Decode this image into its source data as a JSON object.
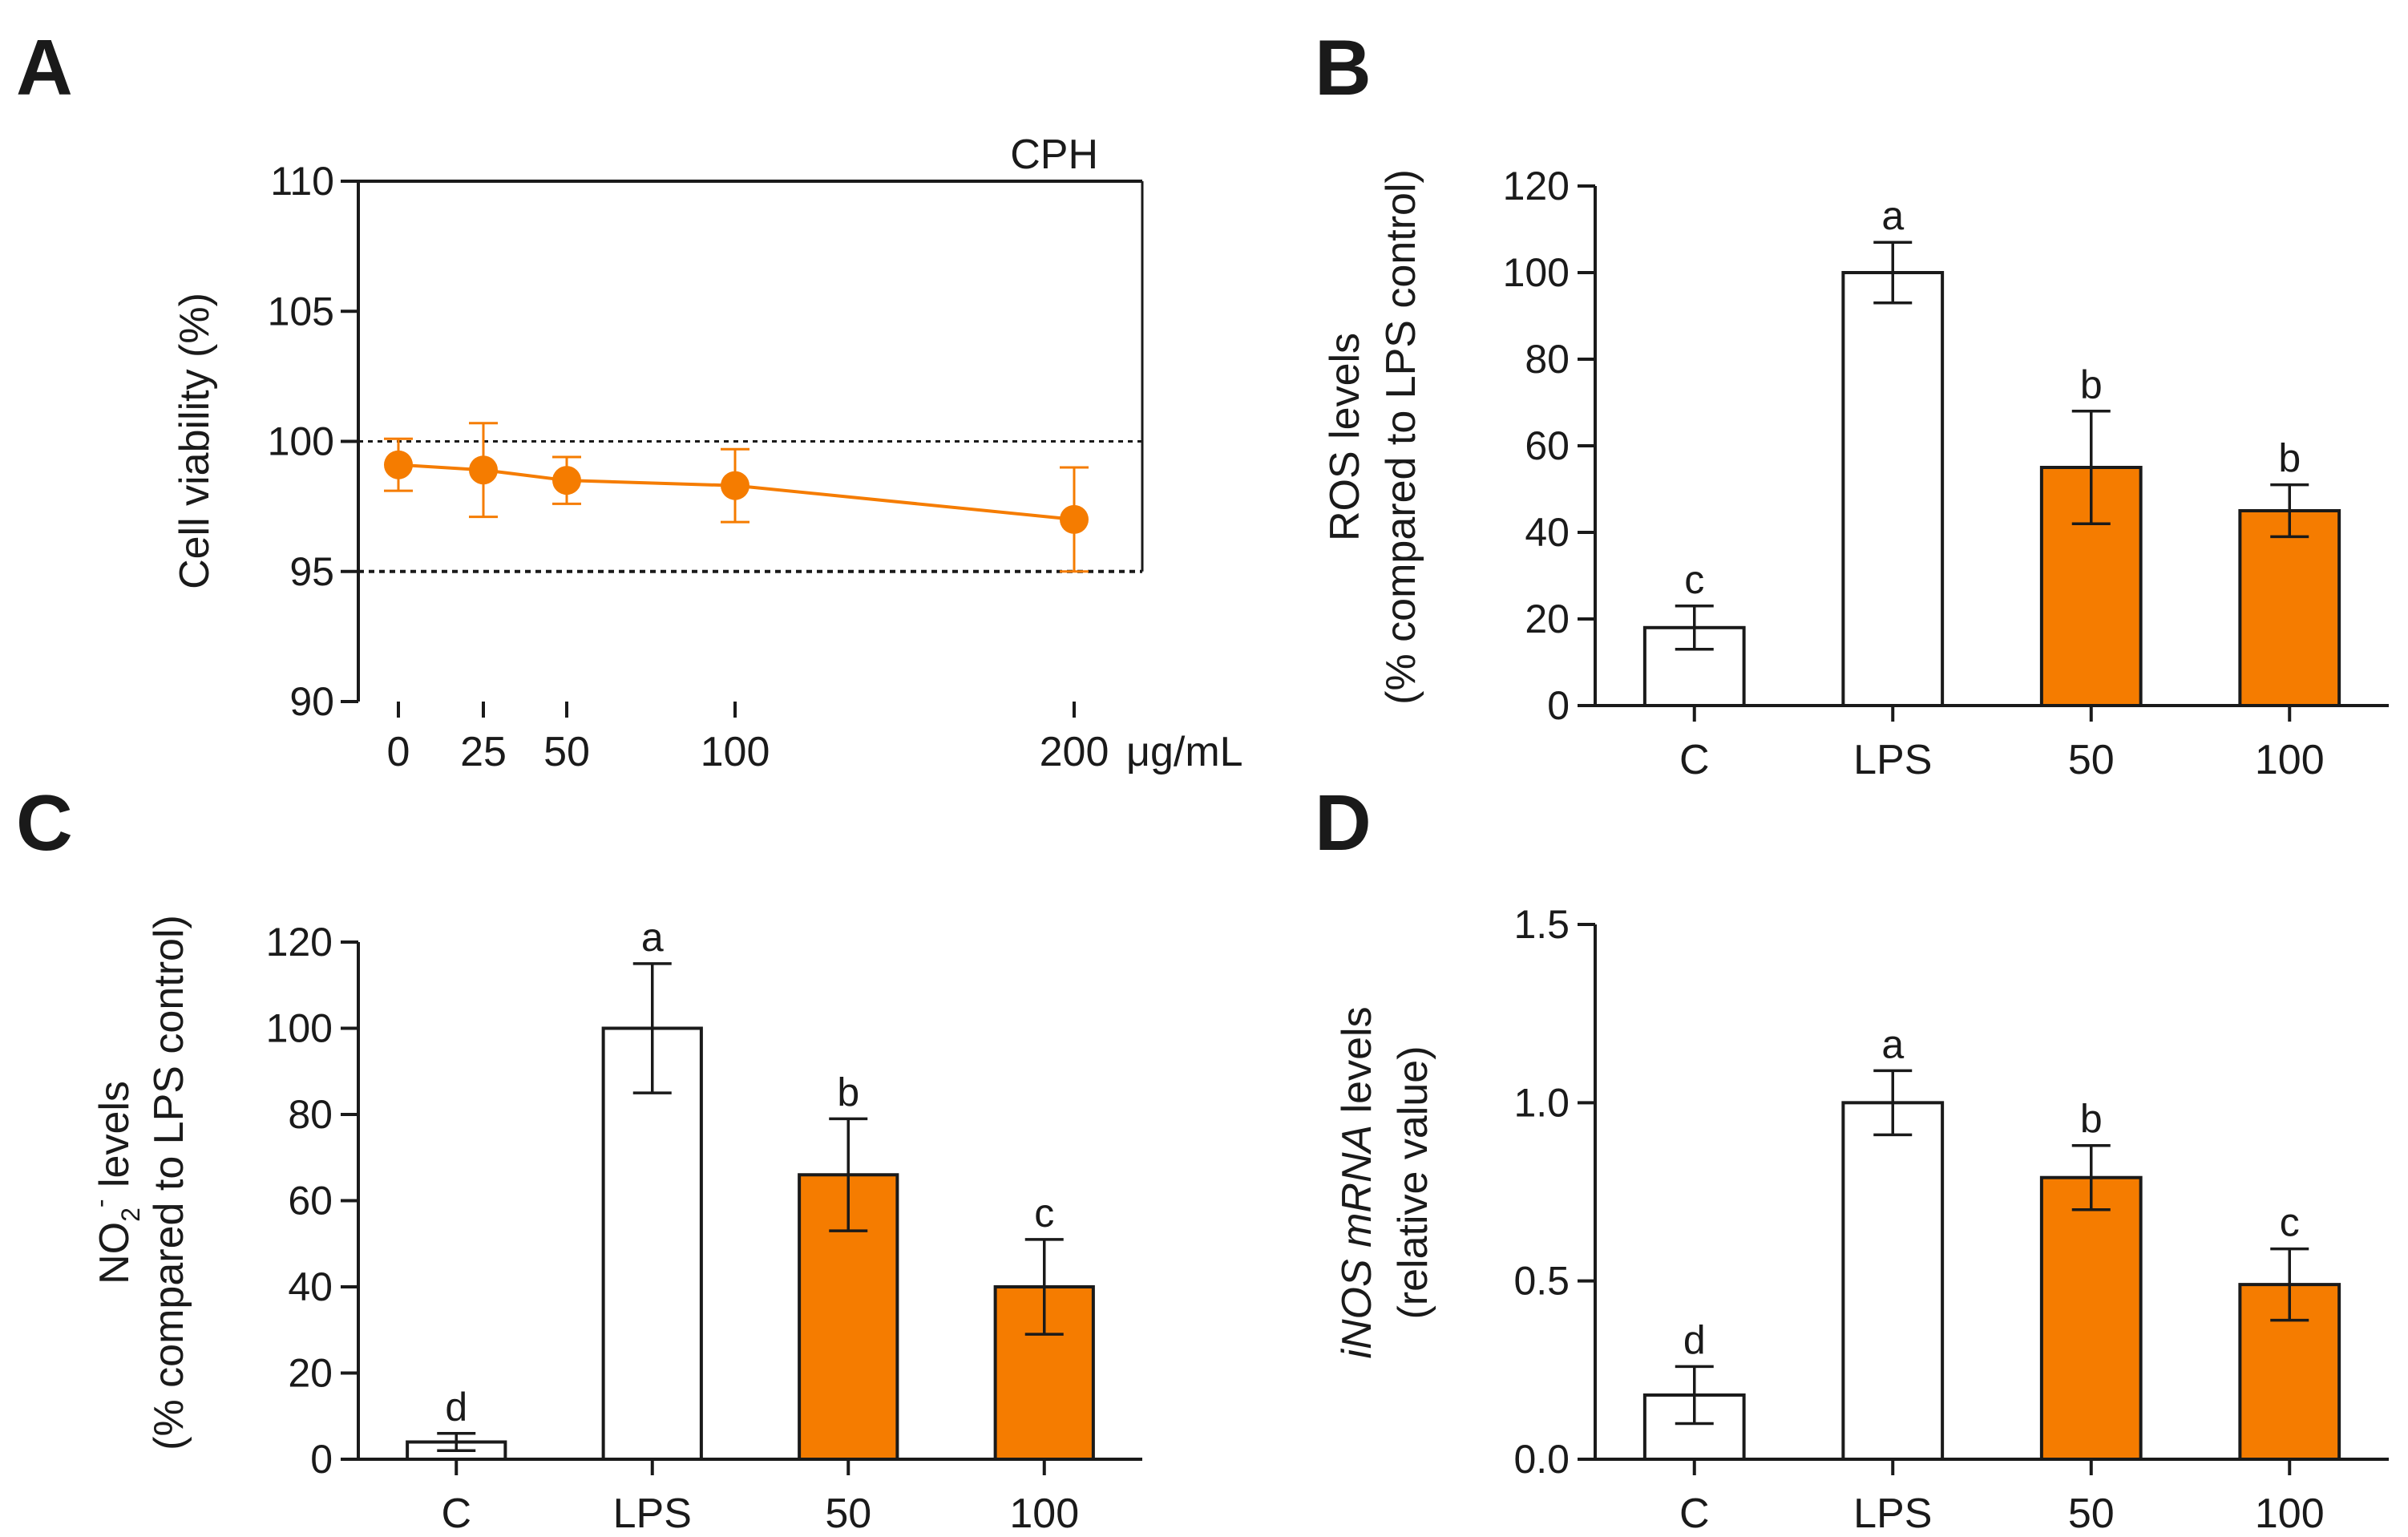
{
  "colors": {
    "accent": "#f57c00",
    "axis": "#1a1a1a",
    "white_bar": "#ffffff"
  },
  "panels": {
    "A": {
      "letter": "A",
      "label_in_plot": "CPH",
      "unit": "μg/mL"
    },
    "B": {
      "letter": "B",
      "ylabel_1": "ROS levels",
      "ylabel_2": "(% compared to LPS control)"
    },
    "C": {
      "letter": "C",
      "ylabel_main": "NO",
      "ylabel_sub": "2",
      "ylabel_sup": "-",
      "ylabel_rest": " levels",
      "ylabel_2": "(% compared to LPS control)"
    },
    "D": {
      "letter": "D",
      "ylabel_it": "iNOS mRNA",
      "ylabel_rest": " levels",
      "ylabel_2": "(relative value)"
    }
  },
  "chart_data": [
    {
      "panel": "A",
      "type": "line",
      "title": "CPH",
      "xlabel": "μg/mL",
      "ylabel": "Cell viability (%)",
      "x": [
        0,
        25,
        50,
        100,
        200
      ],
      "x_tick_labels": [
        "0",
        "25",
        "50",
        "100",
        "200"
      ],
      "y": [
        99.1,
        98.9,
        98.5,
        98.3,
        97.0
      ],
      "yerr": [
        1.0,
        1.8,
        0.9,
        1.4,
        2.0
      ],
      "ylim": [
        90,
        110
      ],
      "yticks": [
        90,
        95,
        100,
        105,
        110
      ],
      "reference_lines": [
        100,
        95
      ],
      "series_color": "#f57c00"
    },
    {
      "panel": "B",
      "type": "bar",
      "ylabel": "ROS levels (% compared to LPS control)",
      "categories": [
        "C",
        "LPS",
        "50",
        "100"
      ],
      "values": [
        18,
        100,
        55,
        45
      ],
      "errors": [
        5,
        7,
        13,
        6
      ],
      "significance": [
        "c",
        "a",
        "b",
        "b"
      ],
      "fills": [
        "#ffffff",
        "#ffffff",
        "#f57c00",
        "#f57c00"
      ],
      "ylim": [
        0,
        120
      ],
      "yticks": [
        0,
        20,
        40,
        60,
        80,
        100,
        120
      ]
    },
    {
      "panel": "C",
      "type": "bar",
      "ylabel": "NO2- levels (% compared to LPS control)",
      "categories": [
        "C",
        "LPS",
        "50",
        "100"
      ],
      "values": [
        4,
        100,
        66,
        40
      ],
      "errors": [
        2,
        15,
        13,
        11
      ],
      "significance": [
        "d",
        "a",
        "b",
        "c"
      ],
      "fills": [
        "#ffffff",
        "#ffffff",
        "#f57c00",
        "#f57c00"
      ],
      "ylim": [
        0,
        120
      ],
      "yticks": [
        0,
        20,
        40,
        60,
        80,
        100,
        120
      ]
    },
    {
      "panel": "D",
      "type": "bar",
      "ylabel": "iNOS mRNA levels (relative value)",
      "categories": [
        "C",
        "LPS",
        "50",
        "100"
      ],
      "values": [
        0.18,
        1.0,
        0.79,
        0.49
      ],
      "errors": [
        0.08,
        0.09,
        0.09,
        0.1
      ],
      "significance": [
        "d",
        "a",
        "b",
        "c"
      ],
      "fills": [
        "#ffffff",
        "#ffffff",
        "#f57c00",
        "#f57c00"
      ],
      "ylim": [
        0,
        1.5
      ],
      "yticks": [
        0.0,
        0.5,
        1.0,
        1.5
      ],
      "ytick_labels": [
        "0.0",
        "0.5",
        "1.0",
        "1.5"
      ]
    }
  ]
}
